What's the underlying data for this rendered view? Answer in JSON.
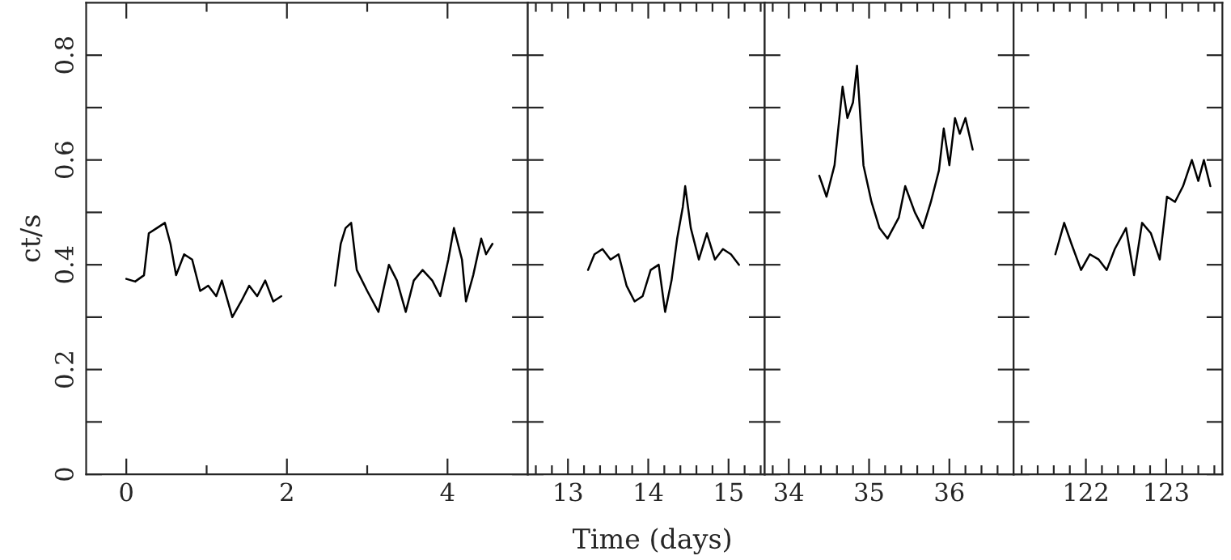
{
  "chart_data": [
    {
      "type": "line",
      "ylabel": "ct/s",
      "xlim": [
        -0.5,
        5
      ],
      "ylim": [
        0,
        0.9
      ],
      "xticks": [
        0,
        {
          "value": 1,
          "label": null
        },
        2,
        {
          "value": 3,
          "label": null
        },
        4
      ],
      "yticks": [
        0,
        {
          "value": 0.1,
          "label": null
        },
        0.2,
        {
          "value": 0.3,
          "label": null
        },
        0.4,
        {
          "value": 0.5,
          "label": null
        },
        0.6,
        {
          "value": 0.7,
          "label": null
        },
        0.8
      ],
      "series": [
        {
          "color": "#000000",
          "x": [
            0,
            0.11,
            0.22,
            0.28,
            0.38,
            0.48,
            0.55,
            0.62,
            0.72,
            0.82,
            0.92,
            1.02,
            1.12,
            1.19,
            1.32,
            1.43,
            1.53,
            1.63,
            1.73,
            1.83,
            1.93,
            2.2,
            2.6,
            2.67,
            2.73,
            2.8,
            2.87,
            3.0,
            3.14,
            3.27,
            3.37,
            3.48,
            3.58,
            3.69,
            3.81,
            3.91,
            4.01,
            4.08,
            4.18,
            4.23,
            4.32,
            4.42,
            4.48,
            4.56
          ],
          "values": [
            0.373,
            0.368,
            0.38,
            0.46,
            0.47,
            0.48,
            0.44,
            0.38,
            0.42,
            0.41,
            0.35,
            0.36,
            0.34,
            0.37,
            0.3,
            0.33,
            0.36,
            0.34,
            0.37,
            0.33,
            0.34,
            null,
            0.36,
            0.44,
            0.47,
            0.48,
            0.39,
            0.35,
            0.31,
            0.4,
            0.37,
            0.31,
            0.37,
            0.39,
            0.37,
            0.34,
            0.41,
            0.47,
            0.41,
            0.33,
            0.38,
            0.45,
            0.42,
            0.44
          ]
        }
      ]
    },
    {
      "type": "line",
      "xlabel": "Time (days)",
      "xlim": [
        12.5,
        15.45
      ],
      "ylim": [
        0,
        0.9
      ],
      "tick_labels": "x",
      "xticks": [
        {
          "value": 12.6,
          "label": null
        },
        {
          "value": 12.8,
          "label": null
        },
        13,
        {
          "value": 13.2,
          "label": null
        },
        {
          "value": 13.4,
          "label": null
        },
        {
          "value": 13.6,
          "label": null
        },
        {
          "value": 13.8,
          "label": null
        },
        14,
        {
          "value": 14.2,
          "label": null
        },
        {
          "value": 14.4,
          "label": null
        },
        {
          "value": 14.6,
          "label": null
        },
        {
          "value": 14.8,
          "label": null
        },
        15,
        {
          "value": 15.2,
          "label": null
        },
        {
          "value": 15.4,
          "label": null
        }
      ],
      "yticks": [
        0,
        0.1,
        0.2,
        0.3,
        0.4,
        0.5,
        0.6,
        0.7,
        0.8
      ],
      "series": [
        {
          "color": "#000000",
          "x": [
            13.25,
            13.33,
            13.43,
            13.53,
            13.63,
            13.73,
            13.83,
            13.93,
            14.03,
            14.13,
            14.21,
            14.29,
            14.36,
            14.43,
            14.46,
            14.53,
            14.63,
            14.73,
            14.83,
            14.93,
            15.03,
            15.13
          ],
          "values": [
            0.39,
            0.42,
            0.43,
            0.41,
            0.42,
            0.36,
            0.33,
            0.34,
            0.39,
            0.4,
            0.31,
            0.37,
            0.45,
            0.51,
            0.55,
            0.47,
            0.41,
            0.46,
            0.41,
            0.43,
            0.42,
            0.4
          ]
        }
      ]
    },
    {
      "type": "line",
      "xlim": [
        33.7,
        36.8
      ],
      "ylim": [
        0,
        0.9
      ],
      "tick_labels": "x",
      "xticks": [
        {
          "value": 33.8,
          "label": null
        },
        34,
        {
          "value": 34.2,
          "label": null
        },
        {
          "value": 34.4,
          "label": null
        },
        {
          "value": 34.6,
          "label": null
        },
        {
          "value": 34.8,
          "label": null
        },
        35,
        {
          "value": 35.2,
          "label": null
        },
        {
          "value": 35.4,
          "label": null
        },
        {
          "value": 35.6,
          "label": null
        },
        {
          "value": 35.8,
          "label": null
        },
        36,
        {
          "value": 36.2,
          "label": null
        },
        {
          "value": 36.4,
          "label": null
        },
        {
          "value": 36.6,
          "label": null
        }
      ],
      "yticks": [
        0,
        0.1,
        0.2,
        0.3,
        0.4,
        0.5,
        0.6,
        0.7,
        0.8
      ],
      "series": [
        {
          "color": "#000000",
          "x": [
            34.38,
            34.47,
            34.57,
            34.67,
            34.73,
            34.8,
            34.85,
            34.93,
            35.03,
            35.13,
            35.23,
            35.37,
            35.45,
            35.57,
            35.67,
            35.77,
            35.87,
            35.93,
            36.0,
            36.07,
            36.13,
            36.2,
            36.29
          ],
          "values": [
            0.57,
            0.53,
            0.59,
            0.74,
            0.68,
            0.71,
            0.78,
            0.59,
            0.52,
            0.47,
            0.45,
            0.49,
            0.55,
            0.5,
            0.47,
            0.52,
            0.58,
            0.66,
            0.59,
            0.68,
            0.65,
            0.68,
            0.62
          ]
        }
      ]
    },
    {
      "type": "line",
      "xlim": [
        121.1,
        123.7
      ],
      "ylim": [
        0,
        0.9
      ],
      "tick_labels": "x",
      "xticks": [
        {
          "value": 121.2,
          "label": null
        },
        {
          "value": 121.4,
          "label": null
        },
        {
          "value": 121.6,
          "label": null
        },
        {
          "value": 121.8,
          "label": null
        },
        122,
        {
          "value": 122.2,
          "label": null
        },
        {
          "value": 122.4,
          "label": null
        },
        {
          "value": 122.6,
          "label": null
        },
        {
          "value": 122.8,
          "label": null
        },
        123,
        {
          "value": 123.2,
          "label": null
        },
        {
          "value": 123.4,
          "label": null
        },
        {
          "value": 123.6,
          "label": null
        }
      ],
      "yticks": [
        0,
        0.1,
        0.2,
        0.3,
        0.4,
        0.5,
        0.6,
        0.7,
        0.8
      ],
      "series": [
        {
          "color": "#000000",
          "x": [
            121.62,
            121.73,
            121.82,
            121.94,
            122.05,
            122.16,
            122.26,
            122.36,
            122.5,
            122.6,
            122.7,
            122.81,
            122.92,
            123.01,
            123.11,
            123.21,
            123.32,
            123.4,
            123.47,
            123.55
          ],
          "values": [
            0.42,
            0.48,
            0.44,
            0.39,
            0.42,
            0.41,
            0.39,
            0.43,
            0.47,
            0.38,
            0.48,
            0.46,
            0.41,
            0.53,
            0.52,
            0.55,
            0.6,
            0.56,
            0.6,
            0.55
          ]
        }
      ]
    }
  ]
}
